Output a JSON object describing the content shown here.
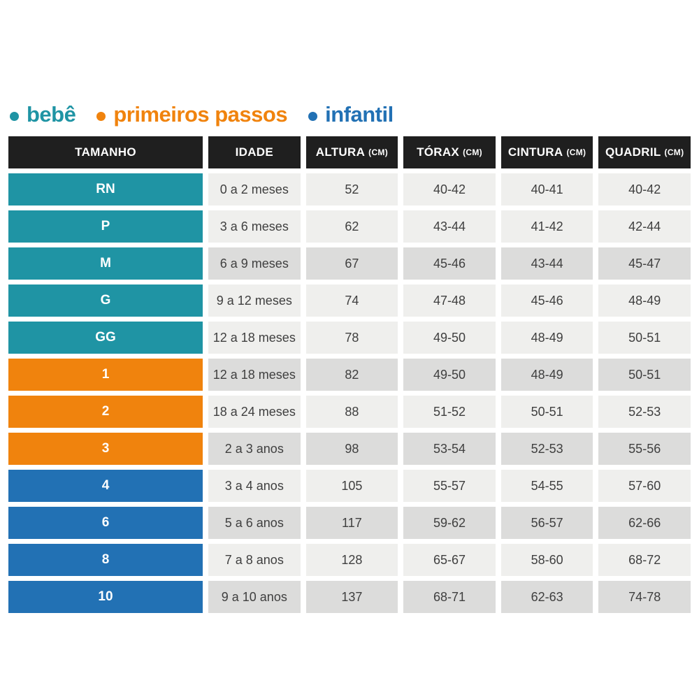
{
  "legend": {
    "items": [
      {
        "label": "bebê",
        "color": "#1f94a4"
      },
      {
        "label": "primeiros passos",
        "color": "#f0830d"
      },
      {
        "label": "infantil",
        "color": "#2271b4"
      }
    ]
  },
  "table": {
    "columns": [
      {
        "label": "TAMANHO",
        "unit": ""
      },
      {
        "label": "IDADE",
        "unit": ""
      },
      {
        "label": "ALTURA",
        "unit": "(CM)"
      },
      {
        "label": "TÓRAX",
        "unit": "(CM)"
      },
      {
        "label": "CINTURA",
        "unit": "(CM)"
      },
      {
        "label": "QUADRIL",
        "unit": "(CM)"
      }
    ],
    "group_colors": {
      "bebe": "#1f94a4",
      "primeiros-passos": "#f0830d",
      "infantil": "#2271b4"
    },
    "rows": [
      {
        "size": "RN",
        "group": "bebe",
        "shaded": false,
        "cells": [
          "0 a 2 meses",
          "52",
          "40-42",
          "40-41",
          "40-42"
        ]
      },
      {
        "size": "P",
        "group": "bebe",
        "shaded": false,
        "cells": [
          "3 a 6 meses",
          "62",
          "43-44",
          "41-42",
          "42-44"
        ]
      },
      {
        "size": "M",
        "group": "bebe",
        "shaded": true,
        "cells": [
          "6 a 9 meses",
          "67",
          "45-46",
          "43-44",
          "45-47"
        ]
      },
      {
        "size": "G",
        "group": "bebe",
        "shaded": false,
        "cells": [
          "9 a 12 meses",
          "74",
          "47-48",
          "45-46",
          "48-49"
        ]
      },
      {
        "size": "GG",
        "group": "bebe",
        "shaded": false,
        "cells": [
          "12 a 18 meses",
          "78",
          "49-50",
          "48-49",
          "50-51"
        ]
      },
      {
        "size": "1",
        "group": "primeiros-passos",
        "shaded": true,
        "cells": [
          "12 a 18 meses",
          "82",
          "49-50",
          "48-49",
          "50-51"
        ]
      },
      {
        "size": "2",
        "group": "primeiros-passos",
        "shaded": false,
        "cells": [
          "18 a 24 meses",
          "88",
          "51-52",
          "50-51",
          "52-53"
        ]
      },
      {
        "size": "3",
        "group": "primeiros-passos",
        "shaded": true,
        "cells": [
          "2 a 3 anos",
          "98",
          "53-54",
          "52-53",
          "55-56"
        ]
      },
      {
        "size": "4",
        "group": "infantil",
        "shaded": false,
        "cells": [
          "3 a 4 anos",
          "105",
          "55-57",
          "54-55",
          "57-60"
        ]
      },
      {
        "size": "6",
        "group": "infantil",
        "shaded": true,
        "cells": [
          "5 a 6 anos",
          "117",
          "59-62",
          "56-57",
          "62-66"
        ]
      },
      {
        "size": "8",
        "group": "infantil",
        "shaded": false,
        "cells": [
          "7 a 8 anos",
          "128",
          "65-67",
          "58-60",
          "68-72"
        ]
      },
      {
        "size": "10",
        "group": "infantil",
        "shaded": true,
        "cells": [
          "9 a 10 anos",
          "137",
          "68-71",
          "62-63",
          "74-78"
        ]
      }
    ]
  },
  "chart_data": {
    "type": "table",
    "title": "",
    "legend": [
      "bebê",
      "primeiros passos",
      "infantil"
    ],
    "columns": [
      "TAMANHO",
      "IDADE",
      "ALTURA (CM)",
      "TÓRAX (CM)",
      "CINTURA (CM)",
      "QUADRIL (CM)"
    ],
    "rows": [
      [
        "RN",
        "0 a 2 meses",
        "52",
        "40-42",
        "40-41",
        "40-42"
      ],
      [
        "P",
        "3 a 6 meses",
        "62",
        "43-44",
        "41-42",
        "42-44"
      ],
      [
        "M",
        "6 a 9 meses",
        "67",
        "45-46",
        "43-44",
        "45-47"
      ],
      [
        "G",
        "9 a 12 meses",
        "74",
        "47-48",
        "45-46",
        "48-49"
      ],
      [
        "GG",
        "12 a 18 meses",
        "78",
        "49-50",
        "48-49",
        "50-51"
      ],
      [
        "1",
        "12 a 18 meses",
        "82",
        "49-50",
        "48-49",
        "50-51"
      ],
      [
        "2",
        "18 a 24 meses",
        "88",
        "51-52",
        "50-51",
        "52-53"
      ],
      [
        "3",
        "2 a 3 anos",
        "98",
        "53-54",
        "52-53",
        "55-56"
      ],
      [
        "4",
        "3 a 4 anos",
        "105",
        "55-57",
        "54-55",
        "57-60"
      ],
      [
        "6",
        "5 a 6 anos",
        "117",
        "59-62",
        "56-57",
        "62-66"
      ],
      [
        "8",
        "7 a 8 anos",
        "128",
        "65-67",
        "58-60",
        "68-72"
      ],
      [
        "10",
        "9 a 10 anos",
        "137",
        "68-71",
        "62-63",
        "74-78"
      ]
    ],
    "row_groups": [
      "bebê",
      "bebê",
      "bebê",
      "bebê",
      "bebê",
      "primeiros passos",
      "primeiros passos",
      "primeiros passos",
      "infantil",
      "infantil",
      "infantil",
      "infantil"
    ]
  }
}
